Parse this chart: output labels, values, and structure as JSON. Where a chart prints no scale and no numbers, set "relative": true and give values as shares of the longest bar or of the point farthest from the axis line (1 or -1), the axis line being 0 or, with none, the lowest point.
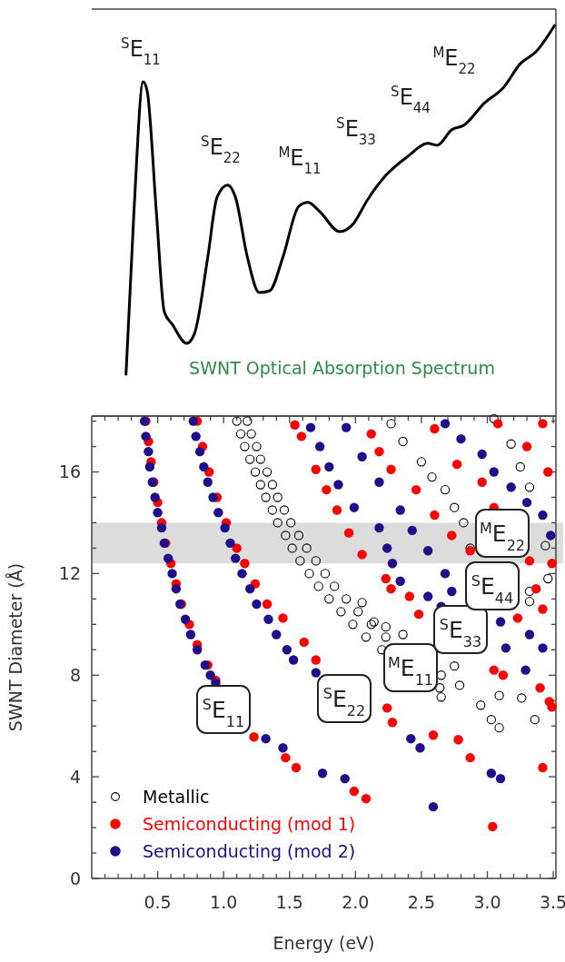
{
  "chart_data": [
    {
      "type": "line",
      "relative": true,
      "xlim": [
        0,
        3.52
      ],
      "series": [
        {
          "color": "#000000",
          "x": [
            0.26,
            0.32,
            0.39,
            0.42,
            0.49,
            0.55,
            0.61,
            0.72,
            0.78,
            0.88,
            0.95,
            1.03,
            1.09,
            1.18,
            1.27,
            1.35,
            1.45,
            1.57,
            1.64,
            1.73,
            1.88,
            1.98,
            2.09,
            2.23,
            2.39,
            2.55,
            2.62,
            2.73,
            2.82,
            2.98,
            3.12,
            3.25,
            3.37,
            3.51
          ],
          "values": [
            0.107,
            0.523,
            0.856,
            0.833,
            0.523,
            0.267,
            0.235,
            0.186,
            0.212,
            0.407,
            0.56,
            0.591,
            0.56,
            0.407,
            0.316,
            0.321,
            0.407,
            0.537,
            0.547,
            0.523,
            0.472,
            0.491,
            0.553,
            0.616,
            0.663,
            0.698,
            0.693,
            0.733,
            0.744,
            0.802,
            0.84,
            0.902,
            0.933,
            1.0
          ]
        }
      ],
      "annotations": [
        "$^{S}$E$_{11}$",
        "$^{S}$E$_{22}$",
        "$^{M}$E$_{11}$",
        "$^{S}$E$_{33}$",
        "$^{S}$E$_{44}$",
        "$^{M}$E$_{22}$",
        "SWNT Optical Absorption Spectrum"
      ]
    },
    {
      "type": "scatter",
      "xlabel": "Energy (eV)",
      "ylabel": "SWNT Diameter (Å)",
      "xlim": [
        0,
        3.52
      ],
      "ylim": [
        0,
        18.2
      ],
      "xticks": [
        {
          "value": 0.1,
          "label": null
        },
        {
          "value": 0.2,
          "label": null
        },
        {
          "value": 0.3,
          "label": null
        },
        {
          "value": 0.4,
          "label": null
        },
        {
          "value": 0.5,
          "label": "0.5"
        },
        {
          "value": 0.6,
          "label": null
        },
        {
          "value": 0.7,
          "label": null
        },
        {
          "value": 0.8,
          "label": null
        },
        {
          "value": 0.9,
          "label": null
        },
        {
          "value": 1.0,
          "label": "1.0"
        },
        {
          "value": 1.1,
          "label": null
        },
        {
          "value": 1.2,
          "label": null
        },
        {
          "value": 1.3,
          "label": null
        },
        {
          "value": 1.4,
          "label": null
        },
        {
          "value": 1.5,
          "label": "1.5"
        },
        {
          "value": 1.6,
          "label": null
        },
        {
          "value": 1.7,
          "label": null
        },
        {
          "value": 1.8,
          "label": null
        },
        {
          "value": 1.9,
          "label": null
        },
        {
          "value": 2.0,
          "label": "2.0"
        },
        {
          "value": 2.1,
          "label": null
        },
        {
          "value": 2.2,
          "label": null
        },
        {
          "value": 2.3,
          "label": null
        },
        {
          "value": 2.4,
          "label": null
        },
        {
          "value": 2.5,
          "label": "2.5"
        },
        {
          "value": 2.6,
          "label": null
        },
        {
          "value": 2.7,
          "label": null
        },
        {
          "value": 2.8,
          "label": null
        },
        {
          "value": 2.9,
          "label": null
        },
        {
          "value": 3.0,
          "label": "3.0"
        },
        {
          "value": 3.1,
          "label": null
        },
        {
          "value": 3.2,
          "label": null
        },
        {
          "value": 3.3,
          "label": null
        },
        {
          "value": 3.4,
          "label": null
        },
        {
          "value": 3.5,
          "label": "3.5"
        }
      ],
      "yticks": [
        0,
        {
          "value": 1,
          "label": null
        },
        {
          "value": 2,
          "label": null
        },
        {
          "value": 3,
          "label": null
        },
        4,
        {
          "value": 5,
          "label": null
        },
        {
          "value": 6,
          "label": null
        },
        {
          "value": 7,
          "label": null
        },
        8,
        {
          "value": 9,
          "label": null
        },
        {
          "value": 10,
          "label": null
        },
        {
          "value": 11,
          "label": null
        },
        12,
        {
          "value": 13,
          "label": null
        },
        {
          "value": 14,
          "label": null
        },
        {
          "value": 15,
          "label": null
        },
        16,
        {
          "value": 17,
          "label": null
        },
        {
          "value": 18,
          "label": null
        }
      ],
      "bands": [
        {
          "axis": "y",
          "from": 12.4,
          "to": 14.0,
          "color": "#dcdcdc"
        }
      ],
      "legend": "bottom left",
      "marker": "circle",
      "series": [
        {
          "name": "Metallic",
          "color": "#000000",
          "marker": "circle-open",
          "x": [
            1.1,
            1.18,
            1.13,
            1.21,
            1.16,
            1.25,
            1.2,
            1.28,
            1.24,
            1.33,
            1.28,
            1.37,
            1.32,
            1.41,
            1.37,
            1.46,
            1.41,
            1.51,
            1.47,
            1.57,
            1.52,
            1.63,
            1.58,
            1.7,
            1.65,
            1.77,
            1.72,
            1.84,
            1.8,
            1.93,
            1.89,
            2.02,
            1.98,
            2.12,
            2.08,
            2.23,
            2.2,
            2.65,
            2.64,
            2.65,
            2.05,
            2.14,
            2.23,
            2.36,
            2.27,
            2.36,
            2.5,
            2.58,
            2.68,
            2.75,
            2.82,
            2.87,
            3.05,
            3.18,
            3.25,
            3.32,
            3.44,
            3.46,
            3.32,
            3.32,
            2.75,
            2.79,
            2.95,
            3.09,
            3.03,
            3.09,
            3.26,
            3.36
          ],
          "values": [
            18.0,
            18.0,
            17.5,
            17.5,
            17.0,
            17.0,
            16.5,
            16.5,
            16.0,
            16.0,
            15.5,
            15.5,
            15.0,
            15.0,
            14.5,
            14.5,
            14.0,
            14.0,
            13.5,
            13.5,
            13.0,
            13.0,
            12.5,
            12.5,
            12.0,
            12.0,
            11.5,
            11.5,
            11.0,
            11.0,
            10.5,
            10.5,
            10.0,
            10.0,
            9.5,
            9.5,
            9.0,
            8.0,
            7.5,
            7.14,
            10.86,
            10.1,
            9.9,
            9.6,
            17.9,
            17.2,
            16.4,
            15.8,
            15.3,
            14.6,
            14.0,
            13.0,
            18.1,
            17.1,
            16.2,
            15.4,
            13.1,
            11.8,
            11.3,
            10.9,
            8.36,
            7.6,
            6.82,
            7.2,
            6.25,
            5.93,
            7.1,
            6.25
          ]
        },
        {
          "name": "Semiconducting (mod 1)",
          "color": "#ff0000",
          "x": [
            0.41,
            0.43,
            0.45,
            0.47,
            0.5,
            0.53,
            0.56,
            0.6,
            0.64,
            0.68,
            0.74,
            0.8,
            0.88,
            0.94,
            1.23,
            1.47,
            1.55,
            1.99,
            2.08,
            0.8,
            0.84,
            0.89,
            0.95,
            1.02,
            1.1,
            1.16,
            1.24,
            1.33,
            1.45,
            1.61,
            1.7,
            2.24,
            2.28,
            2.59,
            2.78,
            2.87,
            3.04,
            1.54,
            1.59,
            1.7,
            1.78,
            1.86,
            1.95,
            2.05,
            2.23,
            2.27,
            2.41,
            2.48,
            2.12,
            2.18,
            2.27,
            2.46,
            2.6,
            2.73,
            2.87,
            3.05,
            3.12,
            3.4,
            3.47,
            3.49,
            3.42,
            2.6,
            2.77,
            2.96,
            3.05,
            3.32,
            3.37,
            3.42,
            3.23,
            3.08,
            3.42,
            3.46,
            3.49,
            3.3
          ],
          "values": [
            18.0,
            17.2,
            16.4,
            15.6,
            14.8,
            14.0,
            13.2,
            12.4,
            11.6,
            10.8,
            10.0,
            9.2,
            8.4,
            7.8,
            5.57,
            4.75,
            4.36,
            3.43,
            3.14,
            18.0,
            17.0,
            16.0,
            15.0,
            14.0,
            13.0,
            12.4,
            11.6,
            10.8,
            10.25,
            9.3,
            8.6,
            6.71,
            6.14,
            5.64,
            5.46,
            4.75,
            2.04,
            17.85,
            17.4,
            16.1,
            15.3,
            14.5,
            13.6,
            12.75,
            11.8,
            11.4,
            11.1,
            10.4,
            17.5,
            16.8,
            16.1,
            15.3,
            14.3,
            13.5,
            12.9,
            8.2,
            8.0,
            7.5,
            6.96,
            6.75,
            4.36,
            17.7,
            16.3,
            15.6,
            14.6,
            12.5,
            11.4,
            10.6,
            10.25,
            17.9,
            17.9,
            16.0,
            12.4,
            17.0
          ]
        },
        {
          "name": "Semiconducting (mod 2)",
          "color": "#1f0d8a",
          "x": [
            0.4,
            0.41,
            0.43,
            0.44,
            0.46,
            0.48,
            0.5,
            0.53,
            0.55,
            0.58,
            0.61,
            0.64,
            0.67,
            0.71,
            0.75,
            0.8,
            0.86,
            0.9,
            0.94,
            1.32,
            1.45,
            1.75,
            1.92,
            0.77,
            0.79,
            0.82,
            0.85,
            0.88,
            0.92,
            0.96,
            1.01,
            1.05,
            1.09,
            1.14,
            1.2,
            1.25,
            1.34,
            1.4,
            1.48,
            1.53,
            1.7,
            2.42,
            2.49,
            2.59,
            3.03,
            3.1,
            1.66,
            1.73,
            1.8,
            1.87,
            1.99,
            2.18,
            2.24,
            2.28,
            2.34,
            2.55,
            2.73,
            2.65,
            3.1,
            3.32,
            3.14,
            3.42,
            3.29,
            1.93,
            2.05,
            2.18,
            2.34,
            2.43,
            2.55,
            2.68,
            2.68,
            2.8,
            2.96,
            3.05,
            3.18,
            3.3,
            3.42,
            3.48
          ],
          "values": [
            18.0,
            17.4,
            16.8,
            16.2,
            15.6,
            15.0,
            14.4,
            13.8,
            13.2,
            12.6,
            12.0,
            11.4,
            10.8,
            10.2,
            9.6,
            9.0,
            8.4,
            8.0,
            7.7,
            5.5,
            5.14,
            4.14,
            3.93,
            18.0,
            17.4,
            16.8,
            16.2,
            15.6,
            15.0,
            14.4,
            13.8,
            13.2,
            12.6,
            12.0,
            11.4,
            10.8,
            10.2,
            9.6,
            9.0,
            8.6,
            8.1,
            5.5,
            5.14,
            2.82,
            4.14,
            3.93,
            17.75,
            17.0,
            16.2,
            15.5,
            14.6,
            13.8,
            13.0,
            12.4,
            11.7,
            11.1,
            11.3,
            10.7,
            10.1,
            9.6,
            9.07,
            9.07,
            8.2,
            17.75,
            16.6,
            15.6,
            14.5,
            13.7,
            12.9,
            12.0,
            17.9,
            17.3,
            16.7,
            16.0,
            15.4,
            14.8,
            14.3,
            13.5
          ]
        }
      ],
      "annotations": [
        "$^{S}$E$_{11}$",
        "$^{S}$E$_{22}$",
        "$^{M}$E$_{11}$",
        "$^{S}$E$_{33}$",
        "$^{S}$E$_{44}$",
        "$^{M}$E$_{22}$"
      ]
    }
  ]
}
